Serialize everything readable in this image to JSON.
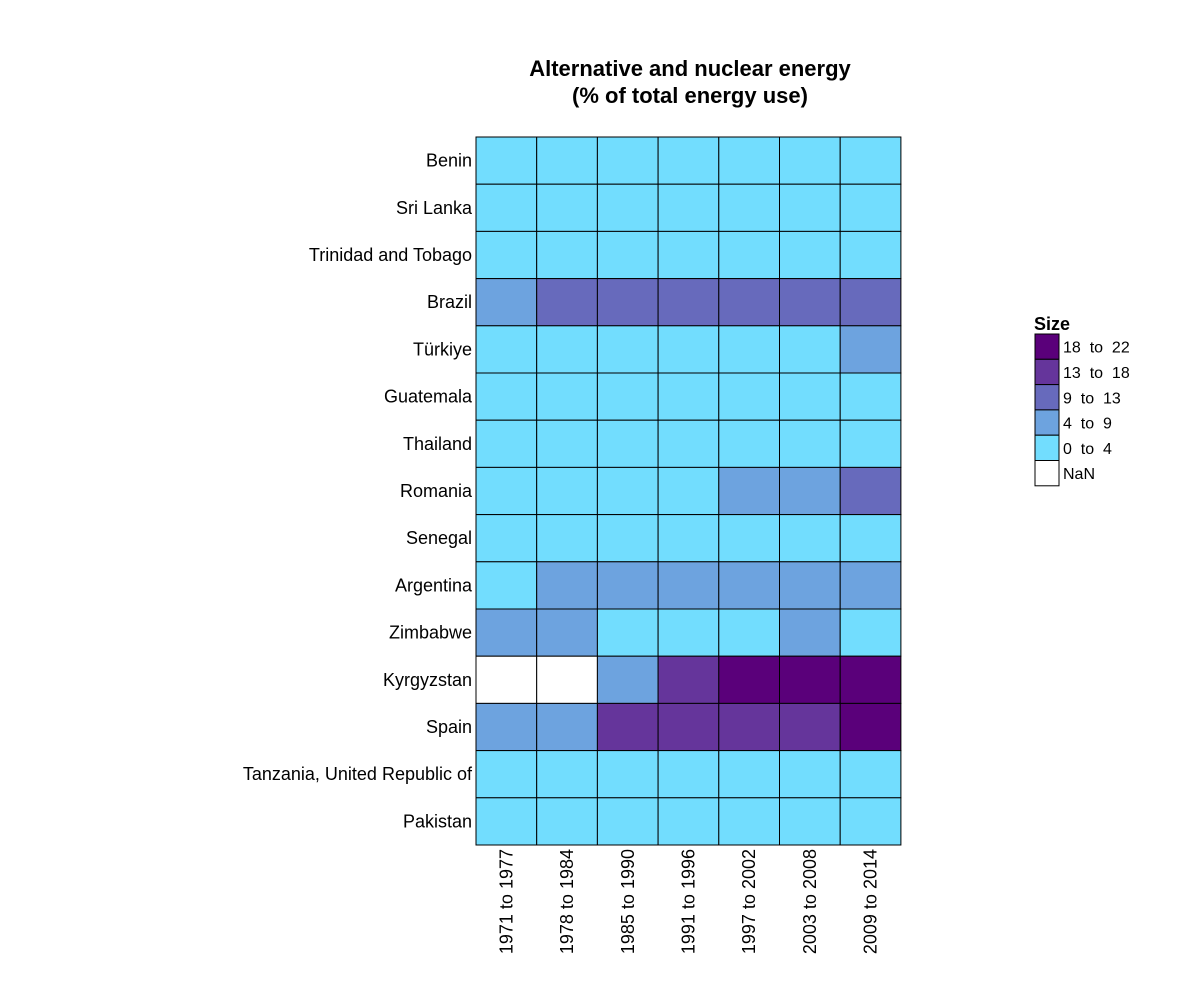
{
  "chart_data": {
    "type": "heatmap",
    "title_lines": [
      "Alternative and nuclear energy",
      "(% of total energy use)"
    ],
    "rows": [
      "Benin",
      "Sri Lanka",
      "Trinidad and Tobago",
      "Brazil",
      "Türkiye",
      "Guatemala",
      "Thailand",
      "Romania",
      "Senegal",
      "Argentina",
      "Zimbabwe",
      "Kyrgyzstan",
      "Spain",
      "Tanzania, United Republic of",
      "Pakistan"
    ],
    "columns": [
      "1971 to 1977",
      "1978 to 1984",
      "1985 to 1990",
      "1991 to 1996",
      "1997 to 2002",
      "2003 to 2008",
      "2009 to 2014"
    ],
    "bins": [
      {
        "label": "18  to  22",
        "color": "#5a007a"
      },
      {
        "label": "13  to  18",
        "color": "#65359b"
      },
      {
        "label": "9  to  13",
        "color": "#676abc"
      },
      {
        "label": "4  to  9",
        "color": "#6da3df"
      },
      {
        "label": "0  to  4",
        "color": "#72ddfe"
      },
      {
        "label": "NaN",
        "color": "#ffffff"
      }
    ],
    "cell_bins": [
      [
        4,
        4,
        4,
        4,
        4,
        4,
        4
      ],
      [
        4,
        4,
        4,
        4,
        4,
        4,
        4
      ],
      [
        4,
        4,
        4,
        4,
        4,
        4,
        4
      ],
      [
        3,
        2,
        2,
        2,
        2,
        2,
        2
      ],
      [
        4,
        4,
        4,
        4,
        4,
        4,
        3
      ],
      [
        4,
        4,
        4,
        4,
        4,
        4,
        4
      ],
      [
        4,
        4,
        4,
        4,
        4,
        4,
        4
      ],
      [
        4,
        4,
        4,
        4,
        3,
        3,
        2
      ],
      [
        4,
        4,
        4,
        4,
        4,
        4,
        4
      ],
      [
        4,
        3,
        3,
        3,
        3,
        3,
        3
      ],
      [
        3,
        3,
        4,
        4,
        4,
        3,
        4
      ],
      [
        5,
        5,
        3,
        1,
        0,
        0,
        0
      ],
      [
        3,
        3,
        1,
        1,
        1,
        1,
        0
      ],
      [
        4,
        4,
        4,
        4,
        4,
        4,
        4
      ],
      [
        4,
        4,
        4,
        4,
        4,
        4,
        4
      ]
    ],
    "legend": {
      "title": "Size",
      "position": "right"
    },
    "grid": false
  }
}
